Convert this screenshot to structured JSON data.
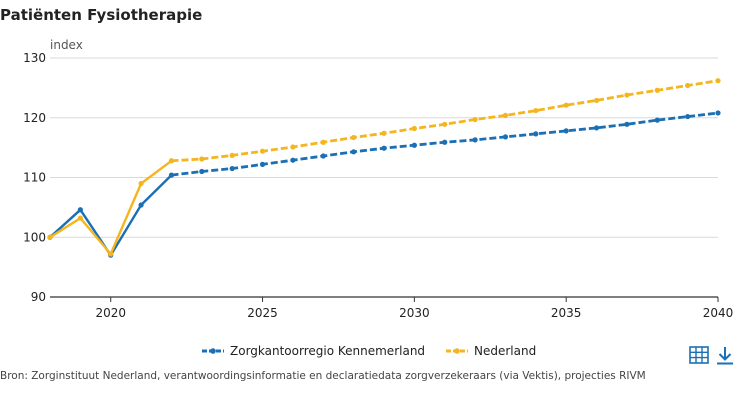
{
  "title": "Patiënten Fysiotherapie",
  "source": "Bron: Zorginstituut Nederland, verantwoordingsinformatie en declaratiedata zorgverzekeraars (via Vektis), projecties RIVM",
  "colors": {
    "blue": "#1a6fb5",
    "orange": "#f5b51e",
    "grid": "#d9d9d9",
    "axis": "#333333"
  },
  "icons": {
    "table": "table-icon",
    "download": "download-icon"
  },
  "chart_data": {
    "type": "line",
    "title": "Patiënten Fysiotherapie",
    "ylabel": "index",
    "xlabel": "",
    "xlim": [
      2018,
      2040
    ],
    "ylim": [
      90,
      130
    ],
    "xticks": [
      2020,
      2025,
      2030,
      2035,
      2040
    ],
    "yticks": [
      90,
      100,
      110,
      120,
      130
    ],
    "grid": "horizontal",
    "legend": "bottom",
    "projection_start": 2022,
    "series": [
      {
        "name": "Zorgkantoorregio Kennemerland",
        "color": "#1a6fb5",
        "x": [
          2018,
          2019,
          2020,
          2021,
          2022,
          2023,
          2024,
          2025,
          2026,
          2027,
          2028,
          2029,
          2030,
          2031,
          2032,
          2033,
          2034,
          2035,
          2036,
          2037,
          2038,
          2039,
          2040
        ],
        "values": [
          100,
          104.6,
          97,
          105.4,
          110.4,
          111,
          111.5,
          112.2,
          112.9,
          113.6,
          114.3,
          114.9,
          115.4,
          115.9,
          116.3,
          116.8,
          117.3,
          117.8,
          118.3,
          118.9,
          119.6,
          120.2,
          120.8
        ]
      },
      {
        "name": "Nederland",
        "color": "#f5b51e",
        "x": [
          2018,
          2019,
          2020,
          2021,
          2022,
          2023,
          2024,
          2025,
          2026,
          2027,
          2028,
          2029,
          2030,
          2031,
          2032,
          2033,
          2034,
          2035,
          2036,
          2037,
          2038,
          2039,
          2040
        ],
        "values": [
          100,
          103.2,
          97.2,
          109,
          112.8,
          113.1,
          113.7,
          114.4,
          115.1,
          115.9,
          116.7,
          117.4,
          118.2,
          118.9,
          119.7,
          120.4,
          121.2,
          122.1,
          122.9,
          123.8,
          124.6,
          125.4,
          126.2
        ]
      }
    ]
  }
}
